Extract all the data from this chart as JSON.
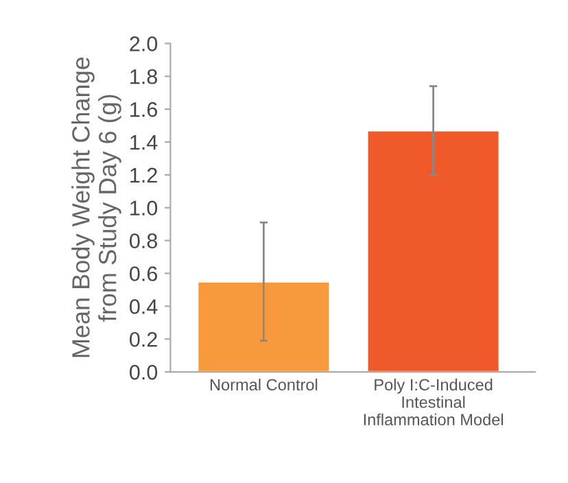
{
  "chart_data": {
    "type": "bar",
    "ylabel": "Mean Body Weight Change\nfrom Study Day 6 (g)",
    "categories": [
      "Normal Control",
      "Poly I:C-Induced\nIntestinal\nInflammation Model"
    ],
    "values": [
      0.55,
      1.47
    ],
    "errors": [
      0.36,
      0.27
    ],
    "colors": [
      "#f79a3e",
      "#f05a2b"
    ],
    "ylim": [
      0,
      2.0
    ],
    "yticks": [
      {
        "value": 0,
        "label": "0.0"
      },
      {
        "value": 0.2,
        "label": "0.2"
      },
      {
        "value": 0.4,
        "label": "0.4"
      },
      {
        "value": 0.6,
        "label": "0.6"
      },
      {
        "value": 0.8,
        "label": "0.8"
      },
      {
        "value": 1.0,
        "label": "1.0"
      },
      {
        "value": 1.2,
        "label": "1.2"
      },
      {
        "value": 1.4,
        "label": "1.4"
      },
      {
        "value": 1.6,
        "label": "1.6"
      },
      {
        "value": 1.8,
        "label": "1.8"
      },
      {
        "value": 2.0,
        "label": "2.0"
      }
    ],
    "grid": false
  }
}
